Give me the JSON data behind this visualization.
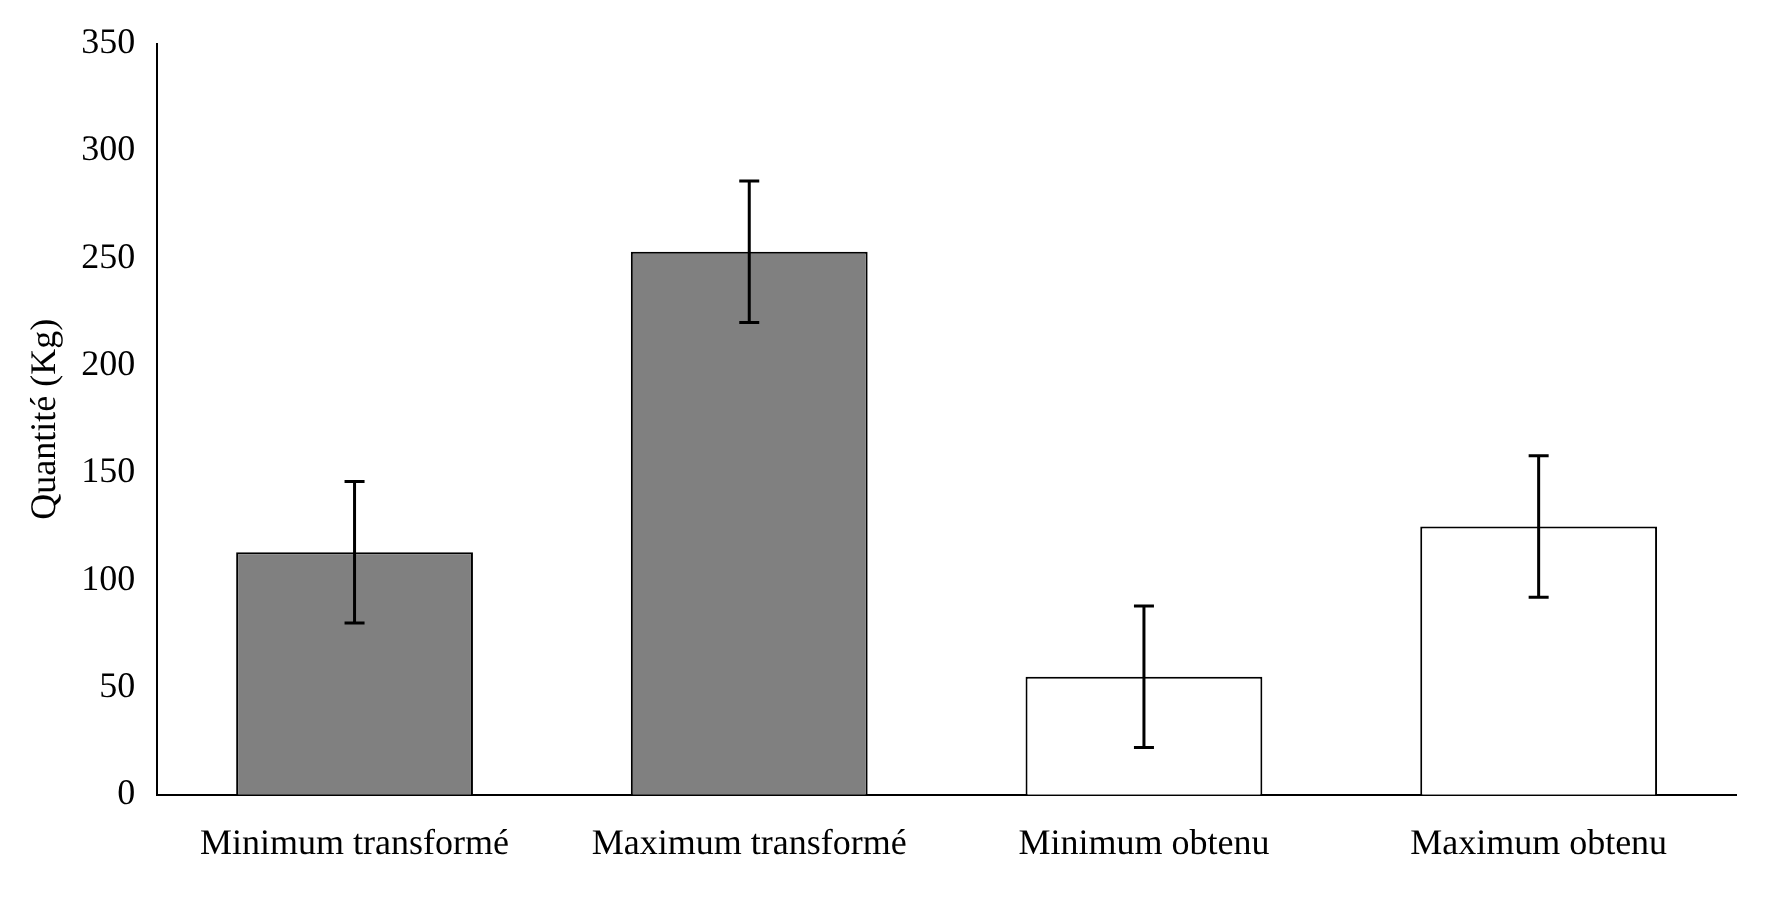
{
  "chart_data": {
    "type": "bar",
    "ylabel": "Quantité (Kg)",
    "categories": [
      "Minimum transformé",
      "Maximum transformé",
      "Minimum obtenu",
      "Maximum obtenu"
    ],
    "values": [
      113,
      253,
      55,
      125
    ],
    "errors": [
      33,
      33,
      33,
      33
    ],
    "colors": [
      "#808080",
      "#808080",
      "#ffffff",
      "#ffffff"
    ],
    "ylim": [
      0,
      350
    ],
    "yticks": [
      0,
      50,
      100,
      150,
      200,
      250,
      300,
      350
    ],
    "grid": false
  }
}
